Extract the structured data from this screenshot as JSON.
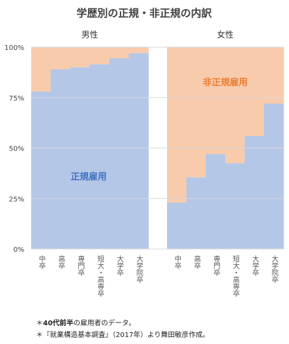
{
  "chart_data": [
    {
      "type": "stacked-bar",
      "title": "学歴別の正規・非正規の内訳",
      "panel_label": "男性",
      "categories": [
        "中卒",
        "高卒",
        "専門卒",
        "短大・高専卒",
        "大学卒",
        "大学院卒"
      ],
      "series": [
        {
          "name": "正規雇用",
          "values": [
            78,
            89,
            90,
            91.5,
            94.5,
            97
          ]
        },
        {
          "name": "非正規雇用",
          "values": [
            22,
            11,
            10,
            8.5,
            5.5,
            3
          ]
        }
      ],
      "yticks": [
        "0%",
        "25%",
        "50%",
        "75%",
        "100%"
      ],
      "ylim": [
        0,
        100
      ]
    },
    {
      "type": "stacked-bar",
      "panel_label": "女性",
      "categories": [
        "中卒",
        "高卒",
        "専門卒",
        "短大・高専卒",
        "大学卒",
        "大学院卒"
      ],
      "series": [
        {
          "name": "正規雇用",
          "values": [
            23,
            35.5,
            47,
            42.5,
            56,
            72
          ]
        },
        {
          "name": "非正規雇用",
          "values": [
            77,
            64.5,
            53,
            57.5,
            44,
            28
          ]
        }
      ],
      "ylim": [
        0,
        100
      ]
    }
  ],
  "labels": {
    "regular": "正規雇用",
    "nonregular": "非正規雇用"
  },
  "colors": {
    "regular": "#b4c7e7",
    "nonregular": "#f8cbad",
    "regular_text": "#4472c4",
    "nonregular_text": "#ed7d31",
    "grid": "#d9d9d9"
  },
  "notes": {
    "note1_prefix": "＊",
    "note1_bold": "40代前半",
    "note1_rest": "の雇用者のデータ。",
    "note2": "＊『就業構造基本調査』（2017年）より舞田敏彦作成。"
  }
}
